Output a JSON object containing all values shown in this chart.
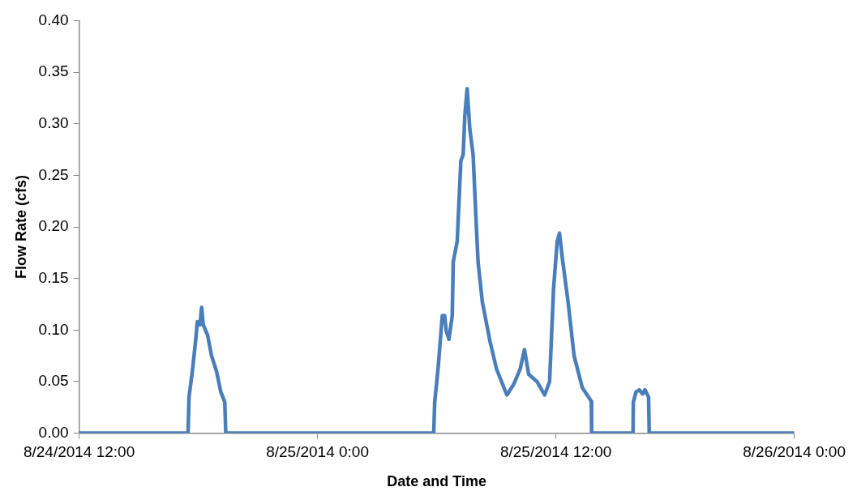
{
  "chart_data": {
    "type": "line",
    "xlabel": "Date and Time",
    "ylabel": "Flow Rate (cfs)",
    "x": [
      "2014-08-24T12:00",
      "2014-08-24T17:29",
      "2014-08-24T17:32",
      "2014-08-24T17:42",
      "2014-08-24T17:52",
      "2014-08-24T17:57",
      "2014-08-24T18:05",
      "2014-08-24T18:10",
      "2014-08-24T18:15",
      "2014-08-24T18:28",
      "2014-08-24T18:40",
      "2014-08-24T18:55",
      "2014-08-24T19:08",
      "2014-08-24T19:20",
      "2014-08-24T19:23",
      "2014-08-25T05:51",
      "2014-08-25T05:54",
      "2014-08-25T06:04",
      "2014-08-25T06:17",
      "2014-08-25T06:24",
      "2014-08-25T06:29",
      "2014-08-25T06:37",
      "2014-08-25T06:47",
      "2014-08-25T06:50",
      "2014-08-25T07:02",
      "2014-08-25T07:13",
      "2014-08-25T07:20",
      "2014-08-25T07:25",
      "2014-08-25T07:32",
      "2014-08-25T07:40",
      "2014-08-25T07:50",
      "2014-08-25T07:58",
      "2014-08-25T08:05",
      "2014-08-25T08:18",
      "2014-08-25T08:41",
      "2014-08-25T09:01",
      "2014-08-25T09:32",
      "2014-08-25T09:52",
      "2014-08-25T10:12",
      "2014-08-25T10:25",
      "2014-08-25T10:38",
      "2014-08-25T11:03",
      "2014-08-25T11:26",
      "2014-08-25T11:41",
      "2014-08-25T11:53",
      "2014-08-25T12:04",
      "2014-08-25T12:11",
      "2014-08-25T12:19",
      "2014-08-25T12:37",
      "2014-08-25T12:55",
      "2014-08-25T13:20",
      "2014-08-25T13:47",
      "2014-08-25T13:48",
      "2014-08-25T15:53",
      "2014-08-25T15:54",
      "2014-08-25T16:02",
      "2014-08-25T16:12",
      "2014-08-25T16:22",
      "2014-08-25T16:29",
      "2014-08-25T16:40",
      "2014-08-25T16:42",
      "2014-08-26T00:00"
    ],
    "series": [
      {
        "color": "#4a7ebb",
        "values": [
          0,
          0,
          0.035,
          0.06,
          0.09,
          0.108,
          0.105,
          0.122,
          0.105,
          0.095,
          0.075,
          0.06,
          0.04,
          0.03,
          0,
          0,
          0.03,
          0.062,
          0.114,
          0.114,
          0.099,
          0.091,
          0.114,
          0.166,
          0.186,
          0.264,
          0.27,
          0.308,
          0.334,
          0.295,
          0.27,
          0.213,
          0.166,
          0.127,
          0.089,
          0.062,
          0.037,
          0.047,
          0.062,
          0.081,
          0.057,
          0.05,
          0.037,
          0.05,
          0.14,
          0.186,
          0.194,
          0.171,
          0.127,
          0.075,
          0.044,
          0.031,
          0,
          0,
          0.03,
          0.04,
          0.042,
          0.038,
          0.042,
          0.035,
          0,
          0
        ]
      }
    ],
    "xlim": [
      "2014-08-24T12:00",
      "2014-08-26T00:00"
    ],
    "xticks": [
      {
        "value": "2014-08-24T12:00",
        "label": "8/24/2014 12:00"
      },
      {
        "value": "2014-08-25T00:00",
        "label": "8/25/2014 0:00"
      },
      {
        "value": "2014-08-25T12:00",
        "label": "8/25/2014 12:00"
      },
      {
        "value": "2014-08-26T00:00",
        "label": "8/26/2014 0:00"
      }
    ],
    "ylim": [
      0,
      0.4
    ],
    "yticks": [
      {
        "value": 0,
        "label": "0.00"
      },
      {
        "value": 0.05,
        "label": "0.05"
      },
      {
        "value": 0.1,
        "label": "0.10"
      },
      {
        "value": 0.15,
        "label": "0.15"
      },
      {
        "value": 0.2,
        "label": "0.20"
      },
      {
        "value": 0.25,
        "label": "0.25"
      },
      {
        "value": 0.3,
        "label": "0.30"
      },
      {
        "value": 0.35,
        "label": "0.35"
      },
      {
        "value": 0.4,
        "label": "0.40"
      }
    ],
    "grid": false,
    "legend": false,
    "marker": "none",
    "line_style": "solid"
  }
}
